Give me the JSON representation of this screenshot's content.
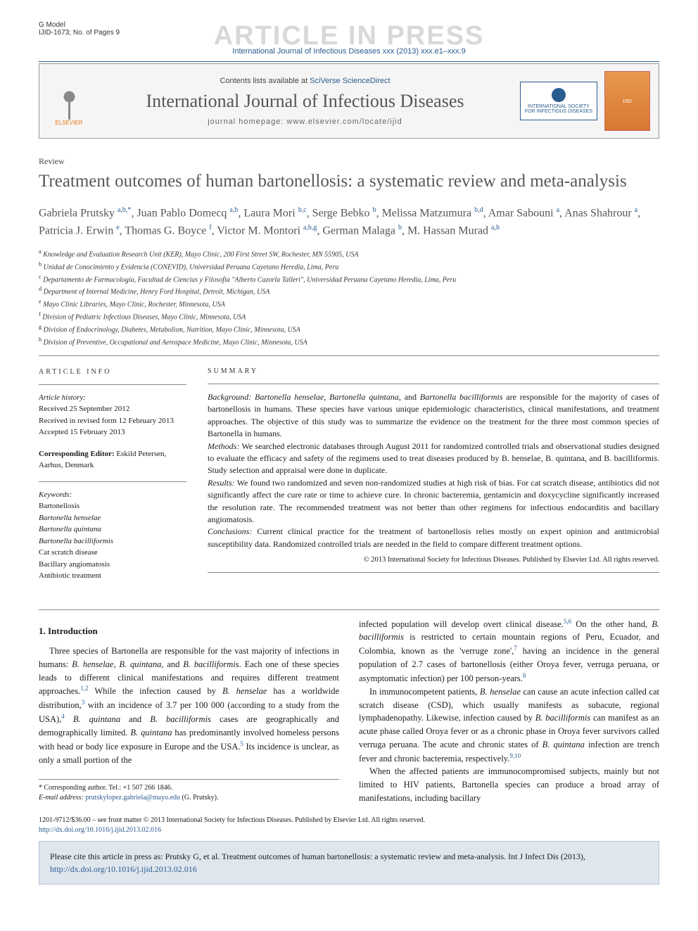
{
  "gmodel": "G Model",
  "docid": "IJID-1673; No. of Pages 9",
  "watermark": "ARTICLE IN PRESS",
  "citation_top": "International Journal of Infectious Diseases xxx (2013) xxx.e1–xxx.9",
  "header": {
    "contents_pre": "Contents lists available at ",
    "contents_link": "SciVerse ScienceDirect",
    "journal": "International Journal of Infectious Diseases",
    "homepage": "journal homepage: www.elsevier.com/locate/ijid",
    "elsevier": "ELSEVIER",
    "society_l1": "INTERNATIONAL SOCIETY",
    "society_l2": "FOR INFECTIOUS DISEASES",
    "cover": "IJID"
  },
  "article_type": "Review",
  "title": "Treatment outcomes of human bartonellosis: a systematic review and meta-analysis",
  "authors_html": "Gabriela Prutsky <sup>a,b,*</sup>, Juan Pablo Domecq <sup>a,b</sup>, Laura Mori <sup>b,c</sup>, Serge Bebko <sup>b</sup>, Melissa Matzumura <sup>b,d</sup>, Amar Sabouni <sup>a</sup>, Anas Shahrour <sup>a</sup>, Patricia J. Erwin <sup>e</sup>, Thomas G. Boyce <sup>f</sup>, Victor M. Montori <sup>a,b,g</sup>, German Malaga <sup>b</sup>, M. Hassan Murad <sup>a,h</sup>",
  "affiliations": [
    "a Knowledge and Evaluation Research Unit (KER), Mayo Clinic, 200 First Street SW, Rochester, MN 55905, USA",
    "b Unidad de Conocimiento y Evidencia (CONEVID), Universidad Peruana Cayetano Heredia, Lima, Peru",
    "c Departamento de Farmacología, Facultad de Ciencias y Filosofía \"Alberto Cazorla Talleri\", Universidad Peruana Cayetano Heredia, Lima, Peru",
    "d Department of Internal Medicine, Henry Ford Hospital, Detroit, Michigan, USA",
    "e Mayo Clinic Libraries, Mayo Clinic, Rochester, Minnesota, USA",
    "f Division of Pediatric Infectious Diseases, Mayo Clinic, Minnesota, USA",
    "g Division of Endocrinology, Diabetes, Metabolism, Nutrition, Mayo Clinic, Minnesota, USA",
    "h Division of Preventive, Occupational and Aerospace Medicine, Mayo Clinic, Minnesota, USA"
  ],
  "info": {
    "heading": "ARTICLE INFO",
    "history_label": "Article history:",
    "received": "Received 25 September 2012",
    "revised": "Received in revised form 12 February 2013",
    "accepted": "Accepted 15 February 2013",
    "corr_editor_label": "Corresponding Editor:",
    "corr_editor": "Eskild Petersen, Aarhus, Denmark",
    "keywords_label": "Keywords:",
    "keywords": [
      "Bartonellosis",
      "Bartonella henselae",
      "Bartonella quintana",
      "Bartonella bacilliformis",
      "Cat scratch disease",
      "Bacillary angiomatosis",
      "Antibiotic treatment"
    ]
  },
  "summary": {
    "heading": "SUMMARY",
    "background_label": "Background:",
    "background": "Bartonella henselae, Bartonella quintana, and Bartonella bacilliformis are responsible for the majority of cases of bartonellosis in humans. These species have various unique epidemiologic characteristics, clinical manifestations, and treatment approaches. The objective of this study was to summarize the evidence on the treatment for the three most common species of Bartonella in humans.",
    "methods_label": "Methods:",
    "methods": "We searched electronic databases through August 2011 for randomized controlled trials and observational studies designed to evaluate the efficacy and safety of the regimens used to treat diseases produced by B. henselae, B. quintana, and B. bacilliformis. Study selection and appraisal were done in duplicate.",
    "results_label": "Results:",
    "results": "We found two randomized and seven non-randomized studies at high risk of bias. For cat scratch disease, antibiotics did not significantly affect the cure rate or time to achieve cure. In chronic bacteremia, gentamicin and doxycycline significantly increased the resolution rate. The recommended treatment was not better than other regimens for infectious endocarditis and bacillary angiomatosis.",
    "conclusions_label": "Conclusions:",
    "conclusions": "Current clinical practice for the treatment of bartonellosis relies mostly on expert opinion and antimicrobial susceptibility data. Randomized controlled trials are needed in the field to compare different treatment options.",
    "copyright": "© 2013 International Society for Infectious Diseases. Published by Elsevier Ltd. All rights reserved."
  },
  "intro": {
    "heading": "1. Introduction",
    "p1_html": "Three species of Bartonella are responsible for the vast majority of infections in humans: <em>B. henselae</em>, <em>B. quintana</em>, and <em>B. bacilliformis</em>. Each one of these species leads to different clinical manifestations and requires different treatment approaches.<sup>1,2</sup> While the infection caused by <em>B. henselae</em> has a worldwide distribution,<sup>3</sup> with an incidence of 3.7 per 100 000 (according to a study from the USA),<sup>4</sup> <em>B. quintana</em> and <em>B. bacilliformis</em> cases are geographically and demographically limited. <em>B. quintana</em> has predominantly involved homeless persons with head or body lice exposure in Europe and the USA.<sup>5</sup> Its incidence is unclear, as only a small portion of the",
    "p1b_html": "infected population will develop overt clinical disease.<sup>5,6</sup> On the other hand, <em>B. bacilliformis</em> is restricted to certain mountain regions of Peru, Ecuador, and Colombia, known as the 'verruge zone',<sup>7</sup> having an incidence in the general population of 2.7 cases of bartonellosis (either Oroya fever, verruga peruana, or asymptomatic infection) per 100 person-years.<sup>8</sup>",
    "p2_html": "In immunocompetent patients, <em>B. henselae</em> can cause an acute infection called cat scratch disease (CSD), which usually manifests as subacute, regional lymphadenopathy. Likewise, infection caused by <em>B. bacilliformis</em> can manifest as an acute phase called Oroya fever or as a chronic phase in Oroya fever survivors called verruga peruana. The acute and chronic states of <em>B. quintana</em> infection are trench fever and chronic bacteremia, respectively.<sup>9,10</sup>",
    "p3_html": "When the affected patients are immunocompromised subjects, mainly but not limited to HIV patients, Bartonella species can produce a broad array of manifestations, including bacillary"
  },
  "corresp": {
    "star": "* Corresponding author. Tel.: +1 507 266 1846.",
    "email_label": "E-mail address:",
    "email": "prutskylopez.gabriela@mayo.edu",
    "name": "(G. Prutsky)."
  },
  "footer": {
    "line": "1201-9712/$36.00 – see front matter © 2013 International Society for Infectious Diseases. Published by Elsevier Ltd. All rights reserved.",
    "doi": "http://dx.doi.org/10.1016/j.ijid.2013.02.016"
  },
  "citebox": {
    "text": "Please cite this article in press as: Prutsky G, et al. Treatment outcomes of human bartonellosis: a systematic review and meta-analysis. Int J Infect Dis (2013), ",
    "doi": "http://dx.doi.org/10.1016/j.ijid.2013.02.016"
  },
  "colors": {
    "link": "#2a5b8e",
    "elsevier": "#e67817",
    "watermark": "#d8d8d8",
    "citebox_bg": "#dfe6ee"
  }
}
